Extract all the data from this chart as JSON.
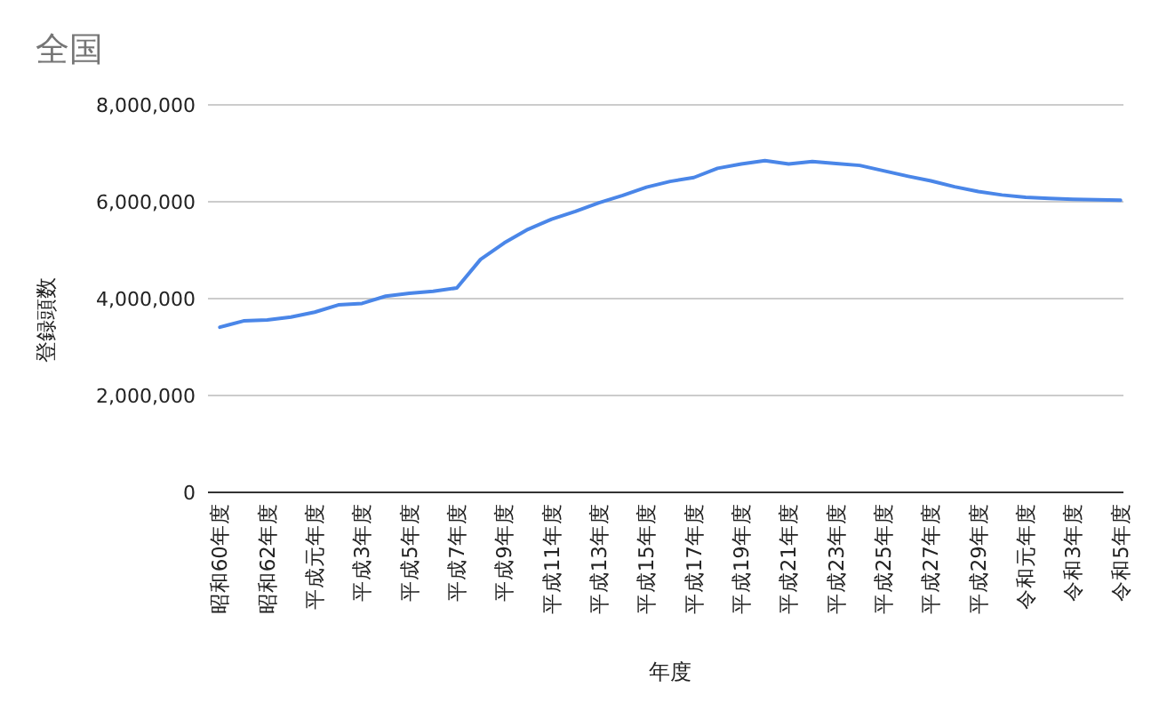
{
  "chart_data": {
    "type": "line",
    "title": "全国",
    "xlabel": "年度",
    "ylabel": "登録頭数",
    "categories": [
      "昭和60年度",
      null,
      "昭和62年度",
      null,
      "平成元年度",
      null,
      "平成3年度",
      null,
      "平成5年度",
      null,
      "平成7年度",
      null,
      "平成9年度",
      null,
      "平成11年度",
      null,
      "平成13年度",
      null,
      "平成15年度",
      null,
      "平成17年度",
      null,
      "平成19年度",
      null,
      "平成21年度",
      null,
      "平成23年度",
      null,
      "平成25年度",
      null,
      "平成27年度",
      null,
      "平成29年度",
      null,
      "令和元年度",
      null,
      "令和3年度",
      null,
      "令和5年度"
    ],
    "series": [
      {
        "color": "#4a86e8",
        "values": [
          3410000,
          3540000,
          3560000,
          3620000,
          3720000,
          3870000,
          3900000,
          4050000,
          4110000,
          4150000,
          4220000,
          4810000,
          5150000,
          5430000,
          5640000,
          5800000,
          5980000,
          6130000,
          6300000,
          6420000,
          6500000,
          6690000,
          6780000,
          6850000,
          6780000,
          6830000,
          6790000,
          6750000,
          6640000,
          6530000,
          6430000,
          6310000,
          6210000,
          6140000,
          6090000,
          6070000,
          6050000,
          6040000,
          6030000
        ]
      }
    ],
    "ylim": [
      0,
      8000000
    ],
    "yticks": [
      {
        "value": 0,
        "label": "0"
      },
      {
        "value": 2000000,
        "label": "2,000,000"
      },
      {
        "value": 4000000,
        "label": "4,000,000"
      },
      {
        "value": 6000000,
        "label": "6,000,000"
      },
      {
        "value": 8000000,
        "label": "8,000,000"
      }
    ],
    "grid": "y"
  }
}
